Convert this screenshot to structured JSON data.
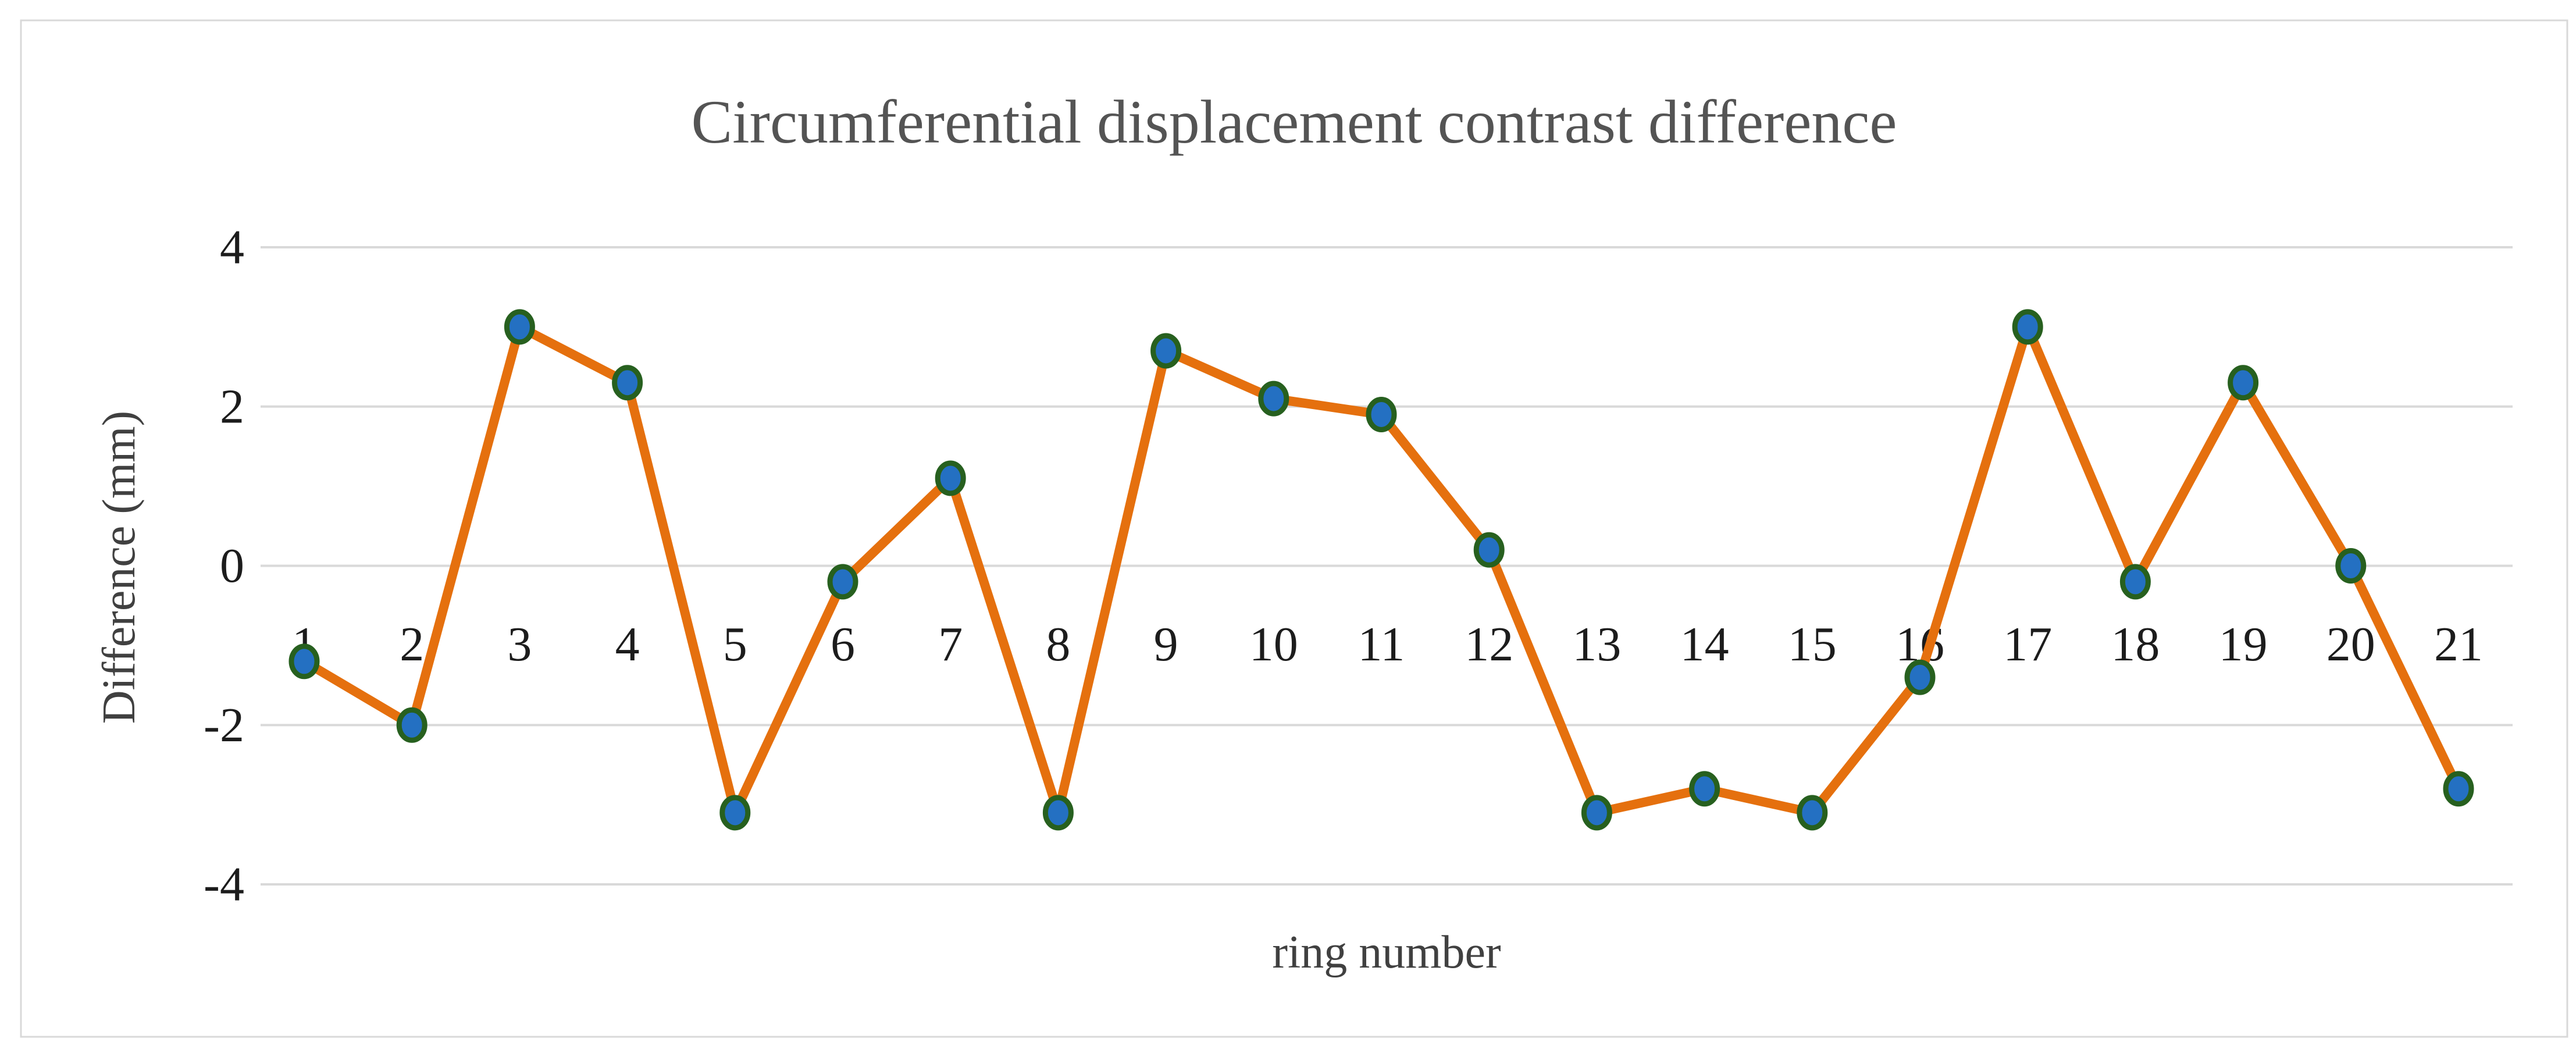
{
  "figure": {
    "background": "#FFFFFF",
    "border_color": "#D9D9D9"
  },
  "chart_data": {
    "type": "line",
    "title": "Circumferential displacement contrast difference",
    "xlabel": "ring number",
    "ylabel": "Difference (mm)",
    "categories": [
      "1",
      "2",
      "3",
      "4",
      "5",
      "6",
      "7",
      "8",
      "9",
      "10",
      "11",
      "12",
      "13",
      "14",
      "15",
      "16",
      "17",
      "18",
      "19",
      "20",
      "21"
    ],
    "values": [
      -1.2,
      -2.0,
      3.0,
      2.3,
      -3.1,
      -0.2,
      1.1,
      -3.1,
      2.7,
      2.1,
      1.9,
      0.2,
      -3.1,
      -2.8,
      -3.1,
      -1.4,
      3.0,
      -0.2,
      2.3,
      0.0,
      -2.8
    ],
    "y_ticks": [
      4,
      2,
      0,
      -2,
      -4
    ],
    "ylim": [
      -4,
      4
    ],
    "grid": "horizontal",
    "legend": "none",
    "colors": {
      "line": "#E5700E",
      "marker_fill": "#2470C2",
      "marker_border": "#27601F",
      "gridline": "#D9D9D9",
      "title_text": "#545454",
      "axis_title_text": "#404040",
      "tick_text": "#1C1C1C"
    }
  }
}
